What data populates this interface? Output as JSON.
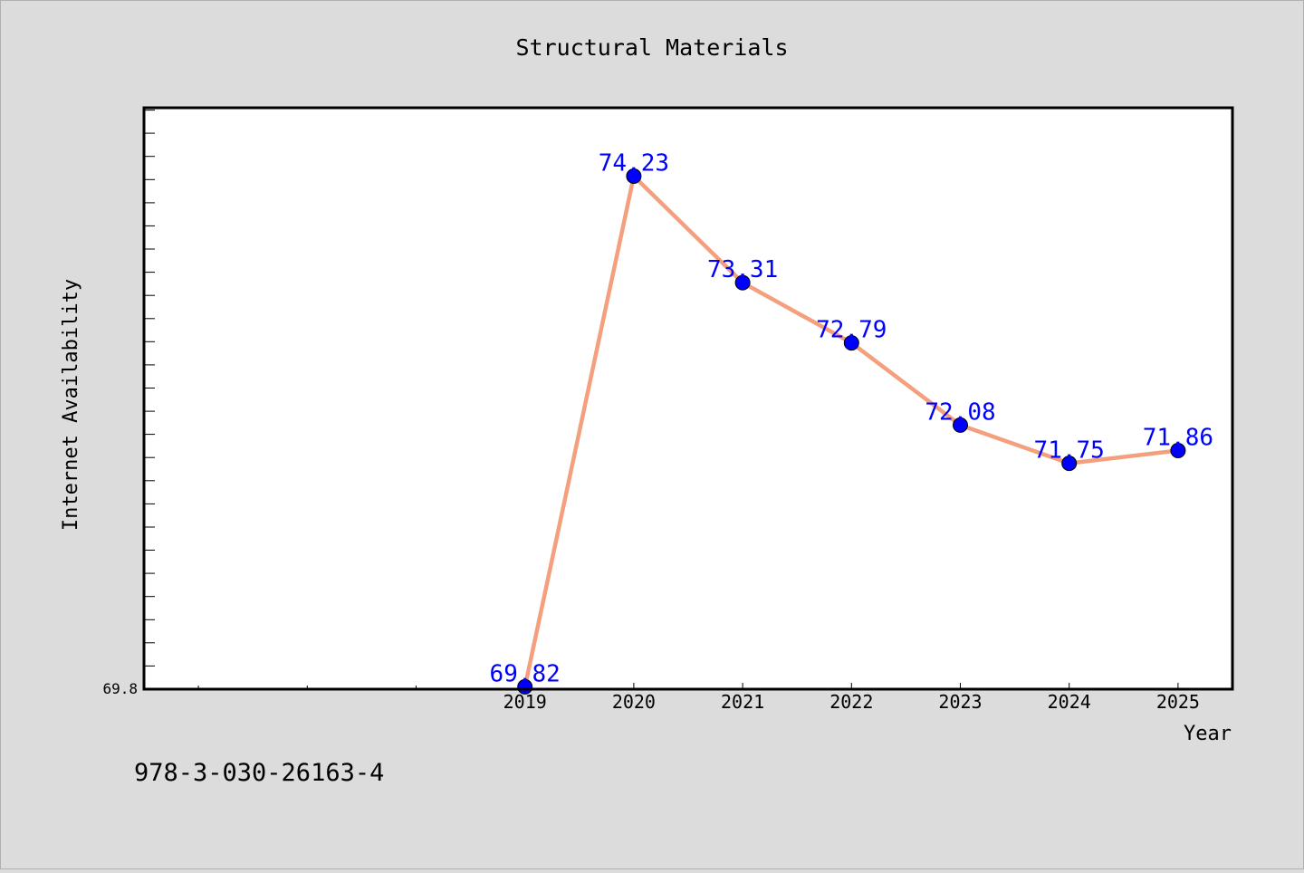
{
  "chart_data": {
    "type": "line",
    "title": "Structural Materials",
    "xlabel": "Year",
    "ylabel": "Internet Availability",
    "footer_text": "978-3-030-26163-4",
    "x": [
      "2019",
      "2020",
      "2021",
      "2022",
      "2023",
      "2024",
      "2025"
    ],
    "series": [
      {
        "values": [
          69.82,
          74.23,
          73.31,
          72.79,
          72.08,
          71.75,
          71.86
        ],
        "data_labels": [
          "69.82",
          "74.23",
          "73.31",
          "72.79",
          "72.08",
          "71.75",
          "71.86"
        ]
      }
    ],
    "y_tick_labels": [
      "69.8"
    ],
    "ylim": [
      69.8,
      74.82
    ],
    "x_range": [
      2015.5,
      2025.5
    ],
    "grid": false,
    "colors": {
      "background": "#dcdcdc",
      "plot_background": "#ffffff",
      "line": "#f4a07e",
      "marker": "#0000ff",
      "data_label": "#0000ff"
    }
  }
}
